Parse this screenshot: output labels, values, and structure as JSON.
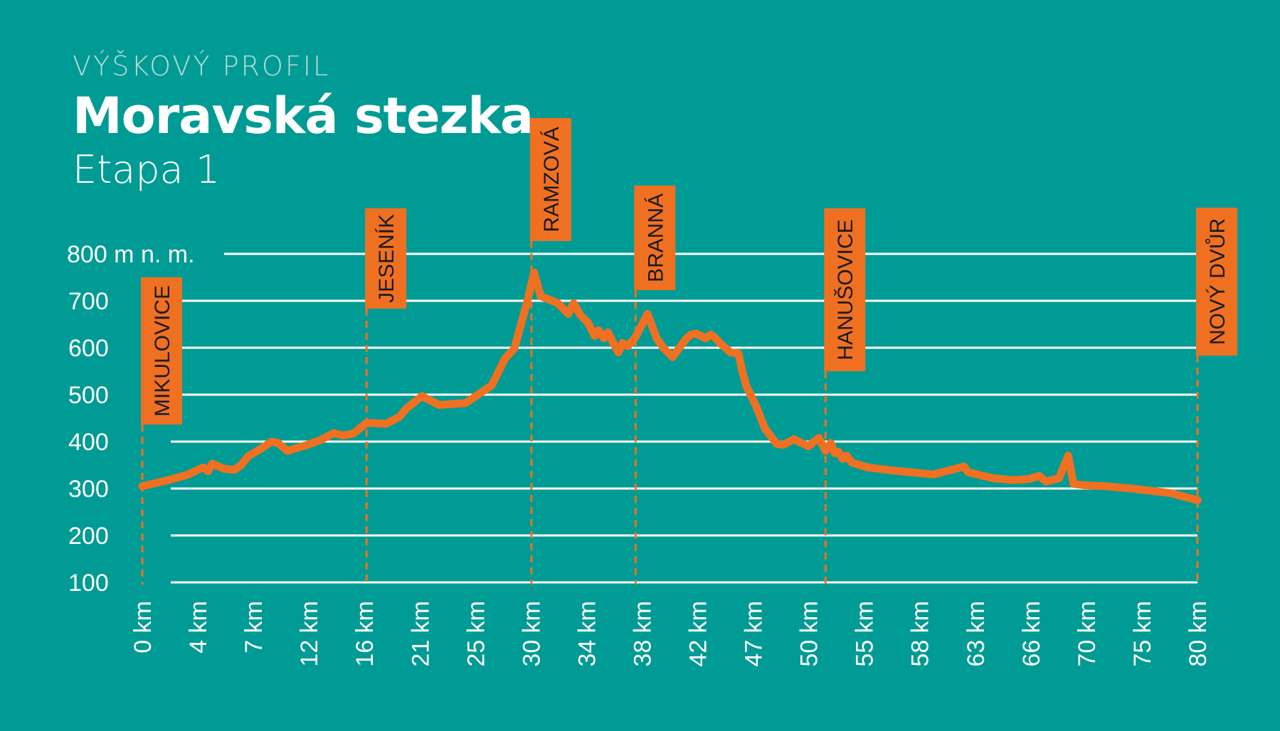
{
  "header": {
    "kicker": "VÝŠKOVÝ PROFIL",
    "title": "Moravská stezka",
    "subtitle": "Etapa 1"
  },
  "colors": {
    "background": "#009b94",
    "profile": "#f07022",
    "grid": "#ffffff",
    "label_text": "#1b1b1b"
  },
  "chart_data": {
    "type": "area",
    "title": "Moravská stezka",
    "xlabel": "",
    "ylabel": "",
    "x_unit": "km",
    "y_unit": "m n. m.",
    "xlim": [
      0,
      80
    ],
    "ylim": [
      100,
      800
    ],
    "grid": true,
    "y_ticks": [
      100,
      200,
      300,
      400,
      500,
      600,
      700,
      800
    ],
    "y_tick_labels": [
      "100",
      "200",
      "300",
      "400",
      "500",
      "600",
      "700",
      "800 m n. m."
    ],
    "x_tick_labels": [
      "0 km",
      "4 km",
      "7 km",
      "12 km",
      "16 km",
      "21 km",
      "25 km",
      "30 km",
      "34 km",
      "38 km",
      "42 km",
      "47 km",
      "50 km",
      "55 km",
      "58 km",
      "63 km",
      "66 km",
      "70 km",
      "75 km",
      "80 km"
    ],
    "stops": [
      {
        "name": "MIKULOVICE",
        "km": 0
      },
      {
        "name": "JESENÍK",
        "km": 17
      },
      {
        "name": "RAMZOVÁ",
        "km": 29.5
      },
      {
        "name": "BRANNÁ",
        "km": 37.4
      },
      {
        "name": "HANUŠOVICE",
        "km": 51.8
      },
      {
        "name": "NOVÝ DVŮR",
        "km": 80
      }
    ],
    "series": [
      {
        "x": [
          0,
          2,
          3.5,
          4.6,
          5,
          5.3,
          6.2,
          7,
          7.5,
          8,
          9,
          9.8,
          10.3,
          11,
          12.5,
          13.5,
          14.5,
          15.2,
          16,
          17,
          18.5,
          19.5,
          20,
          21.2,
          22.5,
          24.5,
          26.5,
          27.5,
          28.2,
          29.2,
          29.7,
          30.2,
          31.5,
          32.3,
          32.7,
          33.2,
          33.8,
          34.3,
          34.6,
          35,
          35.3,
          35.8,
          36.1,
          36.4,
          36.8,
          37.4,
          38.3,
          39,
          39.5,
          40.2,
          41.2,
          41.6,
          42,
          42.7,
          43.1,
          43.4,
          43.8,
          44.6,
          45.2,
          45.5,
          45.8,
          46.5,
          47.2,
          48.1,
          48.6,
          49.4,
          50.5,
          51.3,
          51.8,
          52.2,
          52.5,
          52.8,
          53.1,
          53.4,
          53.8,
          55,
          57,
          60,
          62.3,
          62.6,
          63,
          64.5,
          66,
          67.2,
          68,
          68.5,
          69.5,
          70.2,
          70.6,
          71.4,
          73,
          75,
          78,
          80
        ],
        "y": [
          305,
          318,
          330,
          345,
          337,
          353,
          342,
          340,
          350,
          368,
          385,
          400,
          397,
          380,
          393,
          403,
          418,
          413,
          417,
          440,
          438,
          453,
          470,
          497,
          478,
          482,
          520,
          577,
          598,
          700,
          760,
          710,
          695,
          672,
          695,
          670,
          653,
          625,
          637,
          620,
          633,
          605,
          590,
          610,
          603,
          623,
          672,
          620,
          600,
          580,
          618,
          628,
          630,
          620,
          628,
          622,
          610,
          590,
          588,
          548,
          518,
          478,
          428,
          395,
          393,
          405,
          390,
          408,
          380,
          397,
          375,
          378,
          363,
          370,
          355,
          345,
          338,
          330,
          347,
          335,
          332,
          322,
          318,
          320,
          327,
          315,
          322,
          370,
          310,
          307,
          305,
          300,
          290,
          275
        ]
      }
    ]
  }
}
